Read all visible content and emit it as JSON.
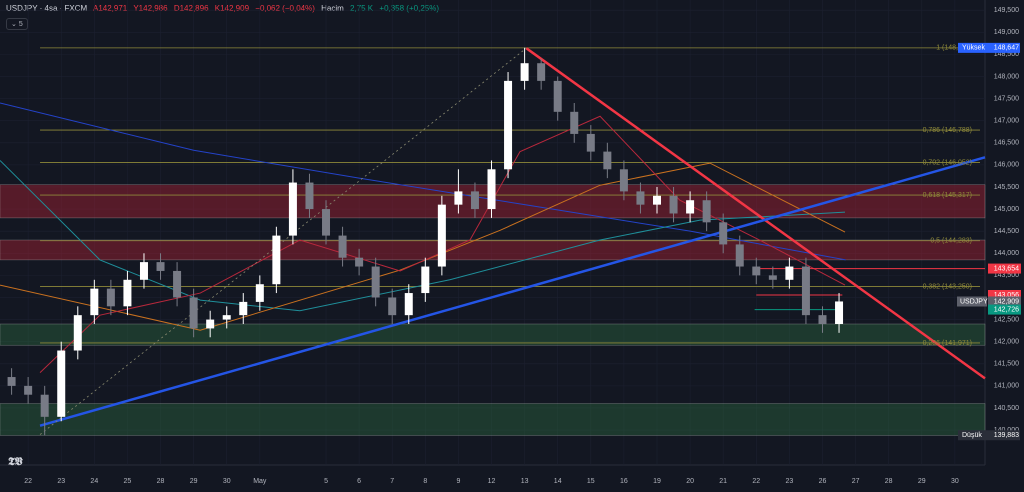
{
  "header": {
    "symbol": "USDJPY · 4sa · FXCM",
    "ohlc": [
      "A142,971",
      "Y142,986",
      "D142,896",
      "K142,909"
    ],
    "change": "−0,062 (−0,04%)",
    "volume_label": "Hacim",
    "volume": "2,75 K",
    "volume_change": "+0,358 (+0,25%)",
    "indicator_count": "5"
  },
  "chart_data": {
    "type": "candlestick",
    "x": [
      -0.5,
      0,
      0.5,
      1,
      1.5,
      2,
      2.5,
      3,
      3.5,
      4,
      4.5,
      5,
      5.5,
      6,
      6.5,
      7,
      7.5,
      8,
      8.5,
      9,
      9.5,
      10,
      10.5,
      11,
      11.5,
      12,
      12.5,
      13,
      13.5,
      14,
      14.5,
      15,
      15.5,
      16,
      16.5,
      17,
      17.5,
      18,
      18.5,
      19,
      19.5,
      20,
      20.5,
      21,
      21.5,
      22,
      22.5,
      23,
      23.5,
      24,
      24.5
    ],
    "open": [
      141.2,
      141.0,
      140.8,
      140.3,
      141.8,
      142.6,
      143.2,
      142.8,
      143.4,
      143.8,
      143.6,
      143.0,
      142.3,
      142.5,
      142.6,
      142.9,
      143.3,
      144.4,
      145.6,
      145.0,
      144.4,
      143.9,
      143.7,
      143.0,
      142.6,
      143.1,
      143.7,
      145.1,
      145.4,
      145.0,
      145.9,
      147.9,
      148.3,
      147.9,
      147.2,
      146.7,
      146.3,
      145.9,
      145.4,
      145.1,
      145.3,
      144.9,
      145.2,
      144.7,
      144.2,
      143.7,
      143.5,
      143.4,
      143.7,
      142.6,
      142.4
    ],
    "high": [
      141.4,
      141.2,
      141.0,
      142.0,
      142.8,
      143.4,
      143.4,
      143.6,
      144.0,
      144.0,
      143.8,
      143.2,
      142.7,
      142.8,
      143.1,
      143.5,
      144.6,
      145.9,
      145.8,
      145.2,
      144.6,
      144.1,
      143.9,
      143.2,
      143.3,
      143.9,
      145.3,
      145.9,
      145.6,
      146.1,
      148.1,
      148.65,
      148.4,
      148.0,
      147.4,
      146.9,
      146.5,
      146.1,
      145.6,
      145.5,
      145.5,
      145.4,
      145.4,
      144.9,
      144.4,
      143.9,
      143.7,
      143.9,
      143.9,
      142.8,
      143.1
    ],
    "low": [
      140.8,
      140.6,
      139.88,
      140.2,
      141.6,
      142.4,
      142.6,
      142.6,
      143.2,
      143.4,
      142.8,
      142.1,
      142.1,
      142.3,
      142.4,
      142.7,
      143.1,
      144.2,
      144.8,
      144.2,
      143.7,
      143.5,
      142.8,
      142.4,
      142.4,
      142.9,
      143.5,
      144.9,
      144.8,
      144.8,
      145.7,
      147.7,
      147.7,
      147.0,
      146.5,
      146.1,
      145.7,
      145.2,
      144.9,
      144.9,
      144.7,
      144.7,
      144.5,
      144.0,
      143.5,
      143.3,
      143.2,
      143.2,
      142.4,
      142.2,
      142.2
    ],
    "close": [
      141.0,
      140.8,
      140.3,
      141.8,
      142.6,
      143.2,
      142.8,
      143.4,
      143.8,
      143.6,
      143.0,
      142.3,
      142.5,
      142.6,
      142.9,
      143.3,
      144.4,
      145.6,
      145.0,
      144.4,
      143.9,
      143.7,
      143.0,
      142.6,
      143.1,
      143.7,
      145.1,
      145.4,
      145.0,
      145.9,
      147.9,
      148.3,
      147.9,
      147.2,
      146.7,
      146.3,
      145.9,
      145.4,
      145.1,
      145.3,
      144.9,
      145.2,
      144.7,
      144.2,
      143.7,
      143.5,
      143.4,
      143.7,
      142.6,
      142.4,
      142.91
    ],
    "up_color": "#ffffff",
    "down_color": "#787b86",
    "xlim": [
      -0.85,
      28.91
    ],
    "ylim": [
      139.21,
      149.73
    ],
    "xticks": [
      {
        "value": 0,
        "label": "22"
      },
      {
        "value": 1,
        "label": "23"
      },
      {
        "value": 2,
        "label": "24"
      },
      {
        "value": 3,
        "label": "25"
      },
      {
        "value": 4,
        "label": "28"
      },
      {
        "value": 5,
        "label": "29"
      },
      {
        "value": 6,
        "label": "30"
      },
      {
        "value": 7,
        "label": "May"
      },
      {
        "value": 9,
        "label": "5"
      },
      {
        "value": 10,
        "label": "6"
      },
      {
        "value": 11,
        "label": "7"
      },
      {
        "value": 12,
        "label": "8"
      },
      {
        "value": 13,
        "label": "9"
      },
      {
        "value": 14,
        "label": "12"
      },
      {
        "value": 15,
        "label": "13"
      },
      {
        "value": 16,
        "label": "14"
      },
      {
        "value": 17,
        "label": "15"
      },
      {
        "value": 18,
        "label": "16"
      },
      {
        "value": 19,
        "label": "19"
      },
      {
        "value": 20,
        "label": "20"
      },
      {
        "value": 21,
        "label": "21"
      },
      {
        "value": 22,
        "label": "22"
      },
      {
        "value": 23,
        "label": "23"
      },
      {
        "value": 24,
        "label": "26"
      },
      {
        "value": 25,
        "label": "27"
      },
      {
        "value": 26,
        "label": "28"
      },
      {
        "value": 27,
        "label": "29"
      },
      {
        "value": 28,
        "label": "30"
      }
    ],
    "yticks": [
      {
        "value": 149.5,
        "label": "149,500"
      },
      {
        "value": 149,
        "label": "149,000"
      },
      {
        "value": 148.5,
        "label": "148,500"
      },
      {
        "value": 148,
        "label": "148,000"
      },
      {
        "value": 147.5,
        "label": "147,500"
      },
      {
        "value": 147,
        "label": "147,000"
      },
      {
        "value": 146.5,
        "label": "146,500"
      },
      {
        "value": 146,
        "label": "146,000"
      },
      {
        "value": 145.5,
        "label": "145,500"
      },
      {
        "value": 145,
        "label": "145,000"
      },
      {
        "value": 144.5,
        "label": "144,500"
      },
      {
        "value": 144,
        "label": "144,000"
      },
      {
        "value": 143.5,
        "label": "143,500"
      },
      {
        "value": 143,
        "label": "143,000"
      },
      {
        "value": 142.5,
        "label": "142,500"
      },
      {
        "value": 142,
        "label": "142,000"
      },
      {
        "value": 141.5,
        "label": "141,500"
      },
      {
        "value": 141,
        "label": "141,000"
      },
      {
        "value": 140.5,
        "label": "140,500"
      },
      {
        "value": 140,
        "label": "140,000"
      }
    ],
    "zones": [
      {
        "from": 144.8,
        "to": 145.55,
        "color": "rgba(178,34,52,0.42)"
      },
      {
        "from": 143.85,
        "to": 144.3,
        "color": "rgba(178,34,52,0.42)"
      },
      {
        "from": 141.92,
        "to": 142.4,
        "color": "rgba(46,110,64,0.4)"
      },
      {
        "from": 139.88,
        "to": 140.6,
        "color": "rgba(46,110,64,0.4)"
      }
    ],
    "fib_start": 0.36,
    "fib_color": "#8f8a3a",
    "fib_levels": [
      {
        "value": 148.647,
        "label": "1 (148,647)"
      },
      {
        "value": 146.788,
        "label": "0,786 (146,788)"
      },
      {
        "value": 146.052,
        "label": "0,702 (146,052)"
      },
      {
        "value": 145.317,
        "label": "0,618 (145,317)"
      },
      {
        "value": 144.283,
        "label": "0,5 (144,283)"
      },
      {
        "value": 143.25,
        "label": "0,382 (143,250)"
      },
      {
        "value": 141.971,
        "label": "0,236 (141,971)"
      }
    ],
    "segments": [
      {
        "x": [
          22.1,
          28.91
        ],
        "value": 143.654,
        "color": "#f23645"
      },
      {
        "x": [
          22.0,
          24.6
        ],
        "value": 143.056,
        "color": "#f23645"
      },
      {
        "x": [
          21.95,
          24.4
        ],
        "value": 142.726,
        "color": "#089981"
      }
    ],
    "moving_averages": [
      {
        "color": "#2443c9",
        "x": [
          -0.85,
          5,
          10,
          15,
          20,
          24.7
        ],
        "values": [
          147.4,
          146.33,
          145.7,
          145.1,
          144.5,
          143.85
        ]
      },
      {
        "color": "#1f8f9a",
        "x": [
          -0.85,
          2.17,
          5.2,
          8.21,
          12.74,
          17.28,
          20.3,
          24.68
        ],
        "values": [
          146.1,
          143.85,
          142.94,
          142.7,
          143.4,
          144.3,
          144.75,
          144.93
        ]
      },
      {
        "color": "#c9711f",
        "x": [
          -0.85,
          5.2,
          11.24,
          14.26,
          17.28,
          20.6,
          24.68
        ],
        "values": [
          143.28,
          142.26,
          143.62,
          144.52,
          145.54,
          146.04,
          144.48
        ]
      },
      {
        "color": "#b8283c",
        "x": [
          0.36,
          2.17,
          5.2,
          8.21,
          11.24,
          13.35,
          14.86,
          17.28,
          19.69,
          22.1,
          24.68
        ],
        "values": [
          141.3,
          142.6,
          143.1,
          144.3,
          143.6,
          144.3,
          146.3,
          147.1,
          145.2,
          144.3,
          143.28
        ]
      }
    ],
    "trendlines": [
      {
        "color": "#f23645",
        "width": 2.5,
        "dash": "",
        "x": [
          15.05,
          28.91
        ],
        "values": [
          148.64,
          141.17
        ]
      },
      {
        "color": "#2455e6",
        "width": 2.5,
        "dash": "",
        "x": [
          0.36,
          28.91
        ],
        "values": [
          140.1,
          146.17
        ]
      },
      {
        "color": "#8a8a70",
        "width": 0.8,
        "dash": "2 3",
        "x": [
          0.36,
          15.05
        ],
        "values": [
          139.9,
          148.64
        ]
      }
    ],
    "badges": [
      {
        "name": "Yüksek",
        "value": 148.647,
        "label": "148,647",
        "color": "#2962ff"
      },
      {
        "name": "Düşük",
        "value": 139.883,
        "label": "139,883",
        "color": "#2a2e39"
      }
    ],
    "price_tags": [
      {
        "value": 143.654,
        "label": "143,654",
        "color": "#f23645"
      },
      {
        "value": 143.056,
        "label": "143,056",
        "color": "#f23645"
      },
      {
        "value": 142.909,
        "label": "142,909",
        "symbol": "USDJPY",
        "countdown": "03:35:35",
        "color": "#5d606b"
      },
      {
        "value": 142.726,
        "label": "142,726",
        "color": "#089981"
      }
    ]
  }
}
